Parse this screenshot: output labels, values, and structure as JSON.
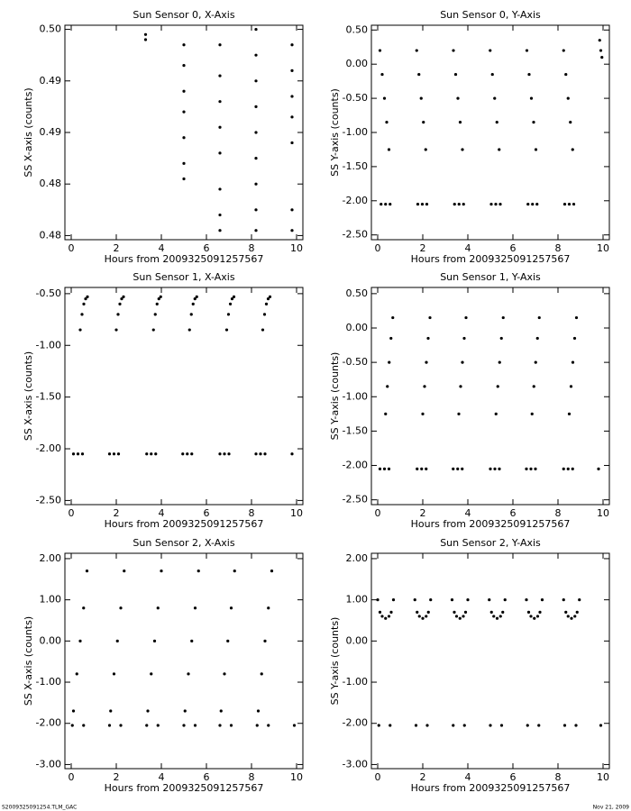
{
  "chart_data": [
    {
      "type": "scatter",
      "title": "Sun Sensor 0, X-Axis",
      "xlabel": "Hours from 2009325091257567",
      "ylabel": "SS X-axis (counts)",
      "color": "#000000",
      "xlim": [
        -0.28,
        10.28
      ],
      "ylim": [
        0.4796,
        0.5004
      ],
      "xticks": [
        0,
        2,
        4,
        6,
        8,
        10
      ],
      "yticks": [
        {
          "value": 0.5,
          "label": "0.50"
        },
        {
          "value": 0.495,
          "label": "0.49"
        },
        {
          "value": 0.49,
          "label": "0.49"
        },
        {
          "value": 0.485,
          "label": "0.48"
        },
        {
          "value": 0.48,
          "label": "0.48"
        }
      ],
      "x": [
        3.3,
        3.3,
        5.0,
        5.0,
        5.0,
        5.0,
        5.0,
        5.0,
        5.0,
        6.6,
        6.6,
        6.6,
        6.6,
        6.6,
        6.6,
        6.6,
        6.6,
        8.2,
        8.2,
        8.2,
        8.2,
        8.2,
        8.2,
        8.2,
        8.2,
        8.2,
        9.8,
        9.8,
        9.8,
        9.8,
        9.8,
        9.8,
        9.8
      ],
      "y": [
        0.4995,
        0.499,
        0.4985,
        0.4965,
        0.494,
        0.492,
        0.4895,
        0.487,
        0.4855,
        0.4985,
        0.4955,
        0.493,
        0.4905,
        0.488,
        0.4845,
        0.482,
        0.4805,
        0.5,
        0.4975,
        0.495,
        0.4925,
        0.49,
        0.4875,
        0.485,
        0.4825,
        0.4805,
        0.4985,
        0.496,
        0.4935,
        0.4915,
        0.489,
        0.4825,
        0.4805
      ]
    },
    {
      "type": "scatter",
      "title": "Sun Sensor 0, Y-Axis",
      "xlabel": "Hours from 2009325091257567",
      "ylabel": "SS Y-axis (counts)",
      "color": "#000000",
      "xlim": [
        -0.28,
        10.28
      ],
      "ylim": [
        -2.57,
        0.57
      ],
      "xticks": [
        0,
        2,
        4,
        6,
        8,
        10
      ],
      "yticks": [
        {
          "value": 0.5,
          "label": "0.50"
        },
        {
          "value": 0,
          "label": "0.00"
        },
        {
          "value": -0.5,
          "label": "-0.50"
        },
        {
          "value": -1,
          "label": "-1.00"
        },
        {
          "value": -1.5,
          "label": "-1.50"
        },
        {
          "value": -2,
          "label": "-2.00"
        },
        {
          "value": -2.5,
          "label": "-2.50"
        }
      ],
      "x": [
        0.1,
        0.2,
        0.3,
        0.4,
        0.5,
        0.15,
        0.35,
        0.55,
        1.73,
        1.83,
        1.93,
        2.03,
        2.13,
        1.78,
        1.98,
        2.18,
        3.36,
        3.46,
        3.56,
        3.66,
        3.76,
        3.41,
        3.61,
        3.81,
        4.99,
        5.09,
        5.19,
        5.29,
        5.39,
        5.04,
        5.24,
        5.44,
        6.62,
        6.72,
        6.82,
        6.92,
        7.02,
        6.67,
        6.87,
        7.07,
        8.25,
        8.35,
        8.45,
        8.55,
        8.65,
        8.3,
        8.5,
        8.7,
        9.85,
        9.9,
        9.95
      ],
      "y": [
        0.2,
        -0.15,
        -0.5,
        -0.85,
        -1.25,
        -2.05,
        -2.05,
        -2.05,
        0.2,
        -0.15,
        -0.5,
        -0.85,
        -1.25,
        -2.05,
        -2.05,
        -2.05,
        0.2,
        -0.15,
        -0.5,
        -0.85,
        -1.25,
        -2.05,
        -2.05,
        -2.05,
        0.2,
        -0.15,
        -0.5,
        -0.85,
        -1.25,
        -2.05,
        -2.05,
        -2.05,
        0.2,
        -0.15,
        -0.5,
        -0.85,
        -1.25,
        -2.05,
        -2.05,
        -2.05,
        0.2,
        -0.15,
        -0.5,
        -0.85,
        -1.25,
        -2.05,
        -2.05,
        -2.05,
        0.35,
        0.2,
        0.1
      ]
    },
    {
      "type": "scatter",
      "title": "Sun Sensor 1, X-Axis",
      "xlabel": "Hours from 2009325091257567",
      "ylabel": "SS X-axis (counts)",
      "color": "#000000",
      "xlim": [
        -0.28,
        10.28
      ],
      "ylim": [
        -2.54,
        -0.44
      ],
      "xticks": [
        0,
        2,
        4,
        6,
        8,
        10
      ],
      "yticks": [
        {
          "value": -0.5,
          "label": "-0.50"
        },
        {
          "value": -1,
          "label": "-1.00"
        },
        {
          "value": -1.5,
          "label": "-1.50"
        },
        {
          "value": -2,
          "label": "-2.00"
        },
        {
          "value": -2.5,
          "label": "-2.50"
        }
      ],
      "x": [
        0.4,
        0.48,
        0.56,
        0.64,
        0.72,
        0.1,
        0.3,
        0.5,
        2.0,
        2.08,
        2.16,
        2.24,
        2.32,
        1.7,
        1.9,
        2.1,
        3.65,
        3.73,
        3.81,
        3.89,
        3.97,
        3.35,
        3.55,
        3.75,
        5.25,
        5.33,
        5.41,
        5.49,
        5.57,
        4.95,
        5.15,
        5.35,
        6.9,
        6.98,
        7.06,
        7.14,
        7.22,
        6.6,
        6.8,
        7.0,
        8.5,
        8.58,
        8.66,
        8.74,
        8.82,
        8.2,
        8.4,
        8.6,
        9.8
      ],
      "y": [
        -0.85,
        -0.7,
        -0.6,
        -0.55,
        -0.53,
        -2.05,
        -2.05,
        -2.05,
        -0.85,
        -0.7,
        -0.6,
        -0.55,
        -0.53,
        -2.05,
        -2.05,
        -2.05,
        -0.85,
        -0.7,
        -0.6,
        -0.55,
        -0.53,
        -2.05,
        -2.05,
        -2.05,
        -0.85,
        -0.7,
        -0.6,
        -0.55,
        -0.53,
        -2.05,
        -2.05,
        -2.05,
        -0.85,
        -0.7,
        -0.6,
        -0.55,
        -0.53,
        -2.05,
        -2.05,
        -2.05,
        -0.85,
        -0.7,
        -0.6,
        -0.55,
        -0.53,
        -2.05,
        -2.05,
        -2.05,
        -2.05
      ]
    },
    {
      "type": "scatter",
      "title": "Sun Sensor 1, Y-Axis",
      "xlabel": "Hours from 2009325091257567",
      "ylabel": "SS Y-axis (counts)",
      "color": "#000000",
      "xlim": [
        -0.28,
        10.28
      ],
      "ylim": [
        -2.57,
        0.59
      ],
      "xticks": [
        0,
        2,
        4,
        6,
        8,
        10
      ],
      "yticks": [
        {
          "value": 0.5,
          "label": "0.50"
        },
        {
          "value": 0,
          "label": "0.00"
        },
        {
          "value": -0.5,
          "label": "-0.50"
        },
        {
          "value": -1,
          "label": "-1.00"
        },
        {
          "value": -1.5,
          "label": "-1.50"
        },
        {
          "value": -2,
          "label": "-2.00"
        },
        {
          "value": -2.5,
          "label": "-2.50"
        }
      ],
      "x": [
        0.35,
        0.43,
        0.51,
        0.59,
        0.67,
        0.1,
        0.3,
        0.5,
        2.0,
        2.08,
        2.16,
        2.24,
        2.32,
        1.75,
        1.95,
        2.15,
        3.6,
        3.68,
        3.76,
        3.84,
        3.92,
        3.35,
        3.55,
        3.75,
        5.25,
        5.33,
        5.41,
        5.49,
        5.57,
        5.0,
        5.2,
        5.4,
        6.85,
        6.93,
        7.01,
        7.09,
        7.17,
        6.6,
        6.8,
        7.0,
        8.5,
        8.58,
        8.66,
        8.74,
        8.82,
        8.25,
        8.45,
        8.65,
        9.8
      ],
      "y": [
        -1.25,
        -0.85,
        -0.5,
        -0.15,
        0.15,
        -2.05,
        -2.05,
        -2.05,
        -1.25,
        -0.85,
        -0.5,
        -0.15,
        0.15,
        -2.05,
        -2.05,
        -2.05,
        -1.25,
        -0.85,
        -0.5,
        -0.15,
        0.15,
        -2.05,
        -2.05,
        -2.05,
        -1.25,
        -0.85,
        -0.5,
        -0.15,
        0.15,
        -2.05,
        -2.05,
        -2.05,
        -1.25,
        -0.85,
        -0.5,
        -0.15,
        0.15,
        -2.05,
        -2.05,
        -2.05,
        -1.25,
        -0.85,
        -0.5,
        -0.15,
        0.15,
        -2.05,
        -2.05,
        -2.05,
        -2.05
      ]
    },
    {
      "type": "scatter",
      "title": "Sun Sensor 2, X-Axis",
      "xlabel": "Hours from 2009325091257567",
      "ylabel": "SS X-axis (counts)",
      "color": "#000000",
      "xlim": [
        -0.28,
        10.28
      ],
      "ylim": [
        -3.1,
        2.13
      ],
      "xticks": [
        0,
        2,
        4,
        6,
        8,
        10
      ],
      "yticks": [
        {
          "value": 2,
          "label": "2.00"
        },
        {
          "value": 1,
          "label": "1.00"
        },
        {
          "value": 0,
          "label": "0.00"
        },
        {
          "value": -1,
          "label": "-1.00"
        },
        {
          "value": -2,
          "label": "-2.00"
        },
        {
          "value": -3,
          "label": "-3.00"
        }
      ],
      "x": [
        0.1,
        0.25,
        0.4,
        0.55,
        0.7,
        0.05,
        0.55,
        1.75,
        1.9,
        2.05,
        2.2,
        2.35,
        1.7,
        2.2,
        3.4,
        3.55,
        3.7,
        3.85,
        4.0,
        3.35,
        3.85,
        5.05,
        5.2,
        5.35,
        5.5,
        5.65,
        5.0,
        5.5,
        6.65,
        6.8,
        6.95,
        7.1,
        7.25,
        6.6,
        7.1,
        8.3,
        8.45,
        8.6,
        8.75,
        8.9,
        8.25,
        8.75,
        9.9
      ],
      "y": [
        -1.7,
        -0.8,
        0.0,
        0.8,
        1.7,
        -2.05,
        -2.05,
        -1.7,
        -0.8,
        0.0,
        0.8,
        1.7,
        -2.05,
        -2.05,
        -1.7,
        -0.8,
        0.0,
        0.8,
        1.7,
        -2.05,
        -2.05,
        -1.7,
        -0.8,
        0.0,
        0.8,
        1.7,
        -2.05,
        -2.05,
        -1.7,
        -0.8,
        0.0,
        0.8,
        1.7,
        -2.05,
        -2.05,
        -1.7,
        -0.8,
        0.0,
        0.8,
        1.7,
        -2.05,
        -2.05,
        -2.05
      ]
    },
    {
      "type": "scatter",
      "title": "Sun Sensor 2, Y-Axis",
      "xlabel": "Hours from 2009325091257567",
      "ylabel": "SS Y-axis (counts)",
      "color": "#000000",
      "xlim": [
        -0.28,
        10.28
      ],
      "ylim": [
        -3.1,
        2.13
      ],
      "xticks": [
        0,
        2,
        4,
        6,
        8,
        10
      ],
      "yticks": [
        {
          "value": 2,
          "label": "2.00"
        },
        {
          "value": 1,
          "label": "1.00"
        },
        {
          "value": 0,
          "label": "0.00"
        },
        {
          "value": -1,
          "label": "-1.00"
        },
        {
          "value": -2,
          "label": "-2.00"
        },
        {
          "value": -3,
          "label": "-3.00"
        }
      ],
      "x": [
        0,
        0.1,
        0.2,
        0.35,
        0.5,
        0.6,
        0.7,
        0.05,
        0.55,
        1.65,
        1.75,
        1.85,
        2.0,
        2.15,
        2.25,
        2.35,
        1.7,
        2.2,
        3.3,
        3.4,
        3.5,
        3.65,
        3.8,
        3.9,
        4.0,
        3.35,
        3.85,
        4.95,
        5.05,
        5.15,
        5.3,
        5.45,
        5.55,
        5.65,
        5.0,
        5.5,
        6.6,
        6.7,
        6.8,
        6.95,
        7.1,
        7.2,
        7.3,
        6.65,
        7.15,
        8.25,
        8.35,
        8.45,
        8.6,
        8.75,
        8.85,
        8.95,
        8.3,
        8.8,
        9.9
      ],
      "y": [
        1.0,
        0.7,
        0.6,
        0.55,
        0.6,
        0.7,
        1.0,
        -2.05,
        -2.05,
        1.0,
        0.7,
        0.6,
        0.55,
        0.6,
        0.7,
        1.0,
        -2.05,
        -2.05,
        1.0,
        0.7,
        0.6,
        0.55,
        0.6,
        0.7,
        1.0,
        -2.05,
        -2.05,
        1.0,
        0.7,
        0.6,
        0.55,
        0.6,
        0.7,
        1.0,
        -2.05,
        -2.05,
        1.0,
        0.7,
        0.6,
        0.55,
        0.6,
        0.7,
        1.0,
        -2.05,
        -2.05,
        1.0,
        0.7,
        0.6,
        0.55,
        0.6,
        0.7,
        1.0,
        -2.05,
        -2.05,
        -2.05
      ]
    }
  ],
  "footer": {
    "left": "S2009325091254.TLM_GAC",
    "right": "Nov 21, 2009"
  }
}
